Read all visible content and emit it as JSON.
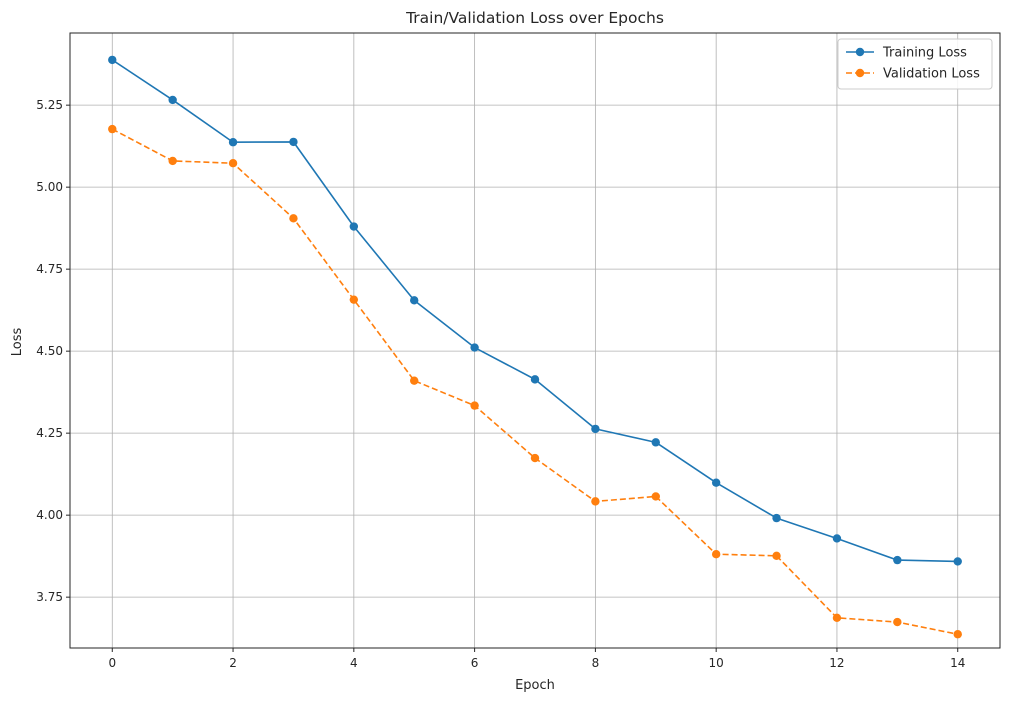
{
  "chart_data": {
    "type": "line",
    "title": "Train/Validation Loss over Epochs",
    "xlabel": "Epoch",
    "ylabel": "Loss",
    "xlim": [
      -0.7,
      14.7
    ],
    "ylim": [
      3.595,
      5.47
    ],
    "xticks": [
      0,
      2,
      4,
      6,
      8,
      10,
      12,
      14
    ],
    "yticks": [
      3.75,
      4.0,
      4.25,
      4.5,
      4.75,
      5.0,
      5.25
    ],
    "ytick_labels": [
      "3.75",
      "4.00",
      "4.25",
      "4.50",
      "4.75",
      "5.00",
      "5.25"
    ],
    "grid": true,
    "legend_position": "top-right",
    "x": [
      0,
      1,
      2,
      3,
      4,
      5,
      6,
      7,
      8,
      9,
      10,
      11,
      12,
      13,
      14
    ],
    "series": [
      {
        "name": "Training Loss",
        "color": "#1f77b4",
        "linestyle": "solid",
        "marker": "circle",
        "values": [
          5.388,
          5.266,
          5.137,
          5.138,
          4.88,
          4.655,
          4.511,
          4.414,
          4.263,
          4.222,
          4.099,
          3.991,
          3.929,
          3.863,
          3.859
        ]
      },
      {
        "name": "Validation Loss",
        "color": "#ff7f0e",
        "linestyle": "dashed",
        "marker": "circle",
        "values": [
          5.177,
          5.08,
          5.073,
          4.905,
          4.657,
          4.41,
          4.334,
          4.174,
          4.042,
          4.057,
          3.881,
          3.876,
          3.687,
          3.674,
          3.637
        ]
      }
    ]
  }
}
